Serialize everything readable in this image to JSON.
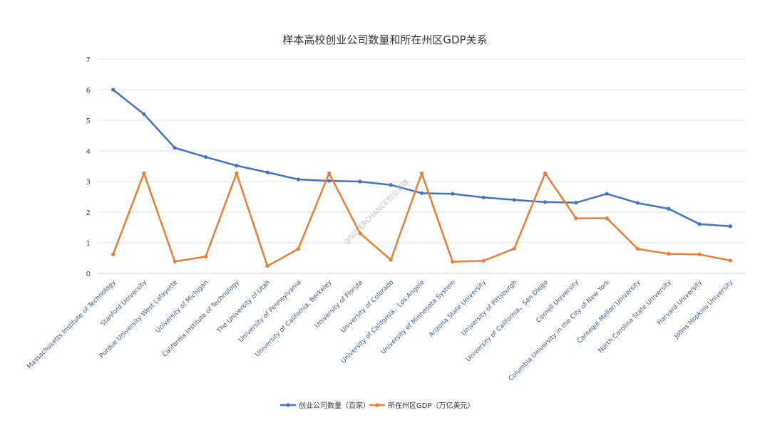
{
  "chart_data": {
    "type": "line",
    "title": "样本高校创业公司数量和所在州区GDP关系",
    "categories": [
      "Massachusetts Institute of Technology",
      "Stanford University",
      "Purdue University West Lafayette",
      "University of Michigan",
      "California Institute of Technology",
      "The University of Utah",
      "University of Pennsylvania",
      "University of California, Berkeley",
      "University of Florida",
      "University of Colorado",
      "University of California，Los Angele",
      "University of Minnesota System",
      "Arizona State University",
      "University of Pittsburgh",
      "University of California，San Diego",
      "Cornell University",
      "Columbia University in the City of New York",
      "Carnegie Mellon University",
      "North Carolina State University",
      "Harvard University",
      "Johns Hopkins University"
    ],
    "series": [
      {
        "name": "创业公司数量（百家）",
        "color": "#4472c4",
        "values": [
          6.0,
          5.2,
          4.1,
          3.8,
          3.52,
          3.3,
          3.07,
          3.02,
          3.0,
          2.89,
          2.62,
          2.6,
          2.48,
          2.4,
          2.33,
          2.31,
          2.6,
          2.3,
          2.11,
          1.61,
          1.54
        ]
      },
      {
        "name": "所在州区GDP（万亿美元）",
        "color": "#ed7d31",
        "values": [
          0.62,
          3.27,
          0.39,
          0.55,
          3.27,
          0.24,
          0.8,
          3.27,
          1.31,
          0.44,
          3.27,
          0.38,
          0.41,
          0.81,
          3.27,
          1.8,
          1.8,
          0.8,
          0.64,
          0.62,
          0.42
        ]
      }
    ],
    "yticks": [
      "0",
      "1",
      "2",
      "3",
      "4",
      "5",
      "6",
      "7"
    ],
    "ylim": [
      0,
      7
    ],
    "grid": true,
    "legend_position": "bottom"
  },
  "watermark": "@SUPERCHANCE创业星球"
}
